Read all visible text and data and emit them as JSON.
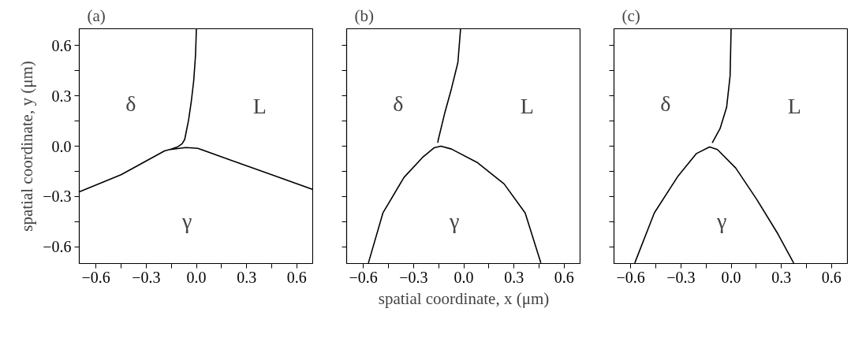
{
  "chart_data": [
    {
      "type": "line",
      "title": "(a)",
      "ylabel": "spatial coordinate, y (μm)",
      "xlim": [
        -0.7,
        0.7
      ],
      "ylim": [
        -0.7,
        0.7
      ],
      "tick_labels": "xy",
      "xticks": [
        -0.6,
        {
          "value": -0.45,
          "label": null
        },
        -0.3,
        {
          "value": -0.15,
          "label": null
        },
        {
          "value": 0,
          "label": "0.0"
        },
        {
          "value": 0.15,
          "label": null
        },
        0.3,
        {
          "value": 0.45,
          "label": null
        },
        0.6
      ],
      "yticks": [
        -0.6,
        {
          "value": -0.45,
          "label": null
        },
        -0.3,
        {
          "value": -0.15,
          "label": null
        },
        {
          "value": 0,
          "label": "0.0"
        },
        {
          "value": 0.15,
          "label": null
        },
        0.3,
        {
          "value": 0.45,
          "label": null
        },
        0.6
      ],
      "series": [
        {
          "color": "#000000",
          "x": [
            0.0,
            -0.005,
            -0.016,
            -0.03,
            -0.047,
            -0.063,
            -0.07,
            -0.085,
            -0.11,
            -0.15,
            -0.19,
            -0.45,
            -0.7
          ],
          "values": [
            0.7,
            0.545,
            0.39,
            0.27,
            0.153,
            0.074,
            0.04,
            0.015,
            -0.003,
            -0.018,
            -0.028,
            -0.17,
            -0.272
          ]
        },
        {
          "color": "#000000",
          "x": [
            0.7,
            0.45,
            0.205,
            0.008,
            -0.063,
            -0.157
          ],
          "values": [
            -0.26,
            -0.17,
            -0.083,
            -0.013,
            -0.008,
            -0.02
          ]
        }
      ],
      "annotations": [
        "δ",
        "L",
        "γ"
      ]
    },
    {
      "type": "line",
      "title": "(b)",
      "xlabel": "spatial coordinate, x (μm)",
      "xlim": [
        -0.7,
        0.7
      ],
      "ylim": [
        -0.7,
        0.7
      ],
      "tick_labels": "x",
      "xticks": [
        -0.6,
        {
          "value": -0.45,
          "label": null
        },
        -0.3,
        {
          "value": -0.15,
          "label": null
        },
        {
          "value": 0,
          "label": "0.0"
        },
        {
          "value": 0.15,
          "label": null
        },
        0.3,
        {
          "value": 0.45,
          "label": null
        },
        0.6
      ],
      "yticks": [
        {
          "value": -0.6,
          "label": null
        },
        {
          "value": -0.45,
          "label": null
        },
        {
          "value": -0.3,
          "label": null
        },
        {
          "value": -0.15,
          "label": null
        },
        {
          "value": 0,
          "label": null
        },
        {
          "value": 0.15,
          "label": null
        },
        {
          "value": 0.3,
          "label": null
        },
        {
          "value": 0.45,
          "label": null
        },
        {
          "value": 0.6,
          "label": null
        }
      ],
      "series": [
        {
          "color": "#000000",
          "x": [
            -0.019,
            -0.035,
            -0.074,
            -0.113,
            -0.153,
            -0.155
          ],
          "values": [
            0.7,
            0.499,
            0.341,
            0.2,
            0.035,
            0.02
          ]
        },
        {
          "color": "#000000",
          "x": [
            -0.57,
            -0.483,
            -0.357,
            -0.247,
            -0.176,
            -0.137,
            -0.074,
            0.083,
            0.241,
            0.367,
            0.461
          ],
          "values": [
            -0.697,
            -0.398,
            -0.186,
            -0.068,
            -0.009,
            0.0,
            -0.017,
            -0.099,
            -0.225,
            -0.398,
            -0.697
          ]
        }
      ],
      "annotations": [
        "δ",
        "L",
        "γ"
      ]
    },
    {
      "type": "line",
      "title": "(c)",
      "xlim": [
        -0.7,
        0.7
      ],
      "ylim": [
        -0.7,
        0.7
      ],
      "tick_labels": "x",
      "xticks": [
        -0.6,
        {
          "value": -0.45,
          "label": null
        },
        -0.3,
        {
          "value": -0.15,
          "label": null
        },
        {
          "value": 0,
          "label": "0.0"
        },
        {
          "value": 0.15,
          "label": null
        },
        0.3,
        {
          "value": 0.45,
          "label": null
        },
        0.6
      ],
      "yticks": [
        {
          "value": -0.6,
          "label": null
        },
        {
          "value": -0.45,
          "label": null
        },
        {
          "value": -0.3,
          "label": null
        },
        {
          "value": -0.15,
          "label": null
        },
        {
          "value": 0,
          "label": null
        },
        {
          "value": 0.15,
          "label": null
        },
        {
          "value": 0.3,
          "label": null
        },
        {
          "value": 0.45,
          "label": null
        },
        {
          "value": 0.6,
          "label": null
        }
      ],
      "series": [
        {
          "color": "#000000",
          "x": [
            0.0,
            -0.006,
            -0.027,
            -0.066,
            -0.113
          ],
          "values": [
            0.7,
            0.42,
            0.231,
            0.105,
            0.019
          ]
        },
        {
          "color": "#000000",
          "x": [
            -0.576,
            -0.459,
            -0.317,
            -0.207,
            -0.129,
            -0.082,
            0.028,
            0.154,
            0.28,
            0.374
          ],
          "values": [
            -0.697,
            -0.398,
            -0.178,
            -0.044,
            -0.005,
            -0.02,
            -0.131,
            -0.319,
            -0.524,
            -0.697
          ]
        }
      ],
      "annotations": [
        "δ",
        "L",
        "γ"
      ]
    }
  ]
}
